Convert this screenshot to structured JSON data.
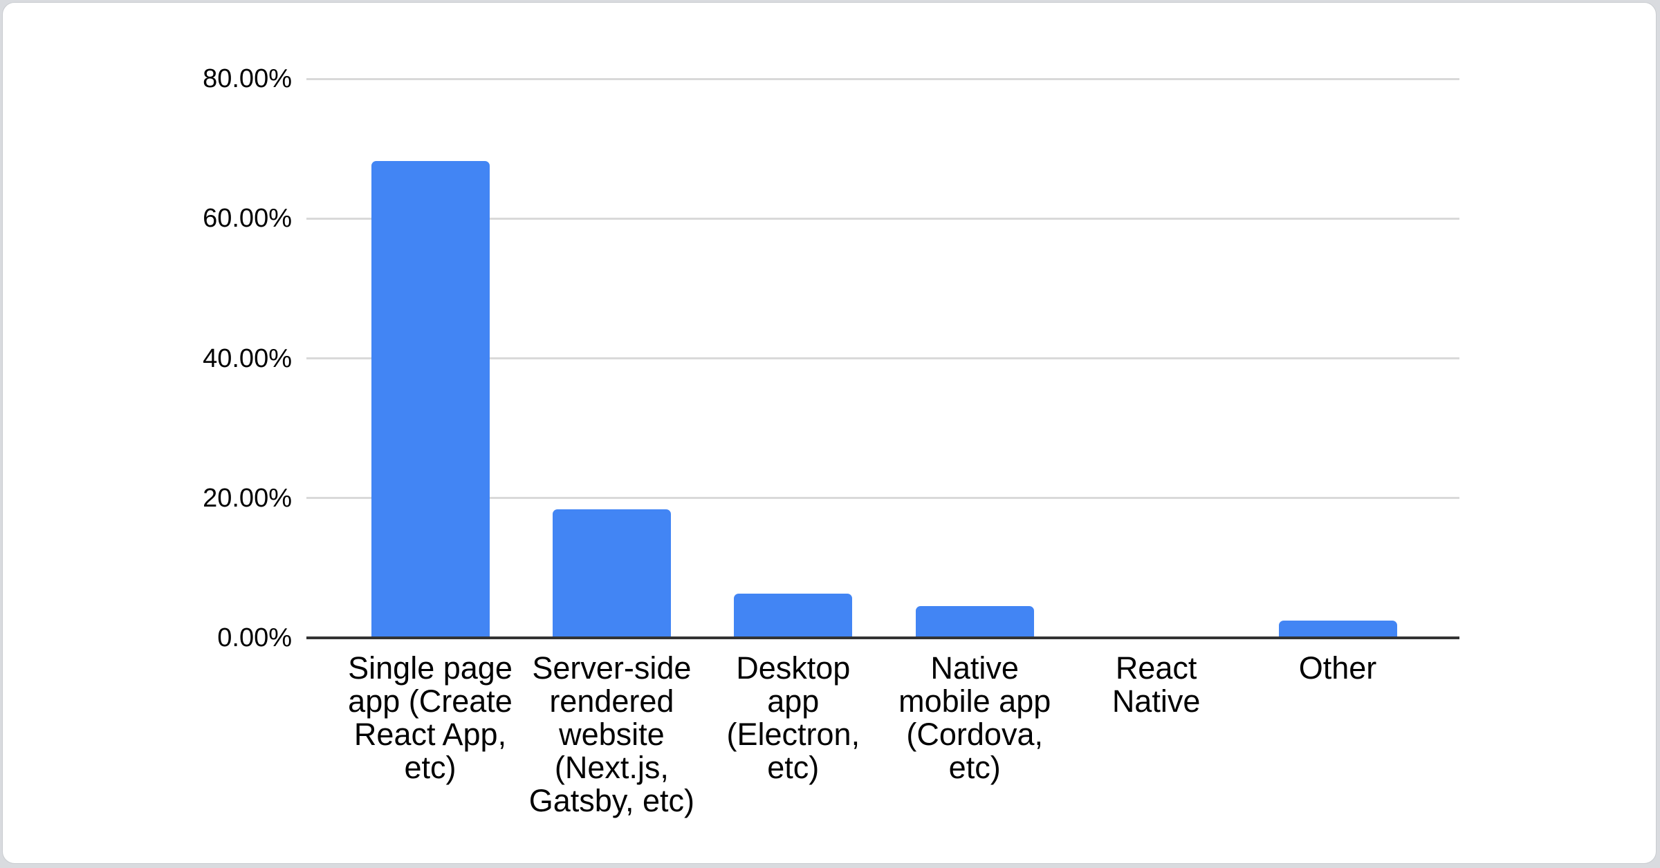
{
  "chart_data": {
    "type": "bar",
    "title": "",
    "xlabel": "",
    "ylabel": "",
    "categories": [
      "Single page\napp (Create\nReact App,\netc)",
      "Server-side\nrendered\nwebsite\n(Next.js,\nGatsby, etc)",
      "Desktop\napp\n(Electron,\netc)",
      "Native\nmobile app\n(Cordova,\netc)",
      "React\nNative",
      "Other"
    ],
    "values": [
      68.2,
      18.4,
      6.3,
      4.5,
      0,
      2.5
    ],
    "unit": "percent",
    "ylim": [
      0,
      80
    ],
    "y_ticks": [
      {
        "value": 80,
        "label": "80.00%"
      },
      {
        "value": 60,
        "label": "60.00%"
      },
      {
        "value": 40,
        "label": "40.00%"
      },
      {
        "value": 20,
        "label": "20.00%"
      },
      {
        "value": 0,
        "label": "0.00%"
      }
    ],
    "grid": true,
    "legend_position": "none",
    "colors": {
      "bar": "#4285f4",
      "gridline": "#d9d9d9",
      "axis_line": "#333333",
      "label_text": "#000000",
      "card_background": "#ffffff",
      "page_background": "#d9dbdf"
    }
  }
}
